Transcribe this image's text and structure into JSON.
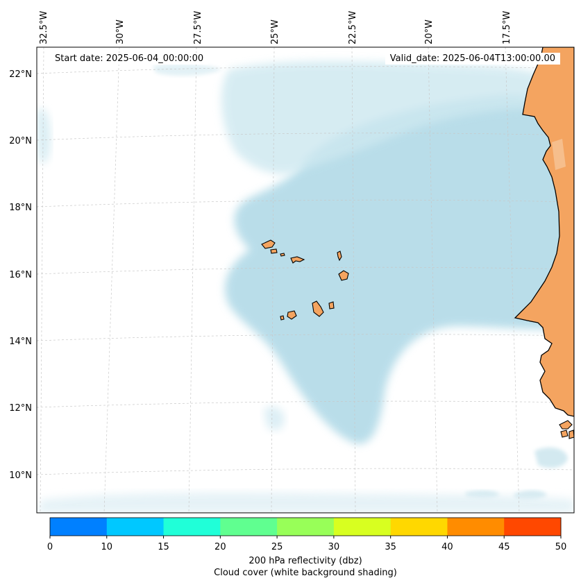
{
  "annotations": {
    "start_date": "Start date: 2025-06-04_00:00:00",
    "valid_date": "Valid_date: 2025-06-04T13:00:00.00"
  },
  "longitude_labels": [
    "32.5°W",
    "30°W",
    "27.5°W",
    "25°W",
    "22.5°W",
    "20°W",
    "17.5°W"
  ],
  "latitude_labels": [
    "22°N",
    "20°N",
    "18°N",
    "16°N",
    "14°N",
    "12°N",
    "10°N"
  ],
  "colorbar": {
    "ticks": [
      "0",
      "10",
      "15",
      "20",
      "25",
      "30",
      "35",
      "40",
      "45",
      "50"
    ],
    "colors": [
      "#0080ff",
      "#00c8ff",
      "#20ffd8",
      "#60ff90",
      "#98ff58",
      "#d8ff20",
      "#ffd800",
      "#ff8c00",
      "#ff4800"
    ],
    "label_line1": "200 hPa reflectivity (dbz)",
    "label_line2": "Cloud cover (white background shading)"
  },
  "map_colors": {
    "land": "#f4a460",
    "cloud": "#add8e6",
    "coast": "#000000",
    "grid": "#c8c8c8"
  }
}
